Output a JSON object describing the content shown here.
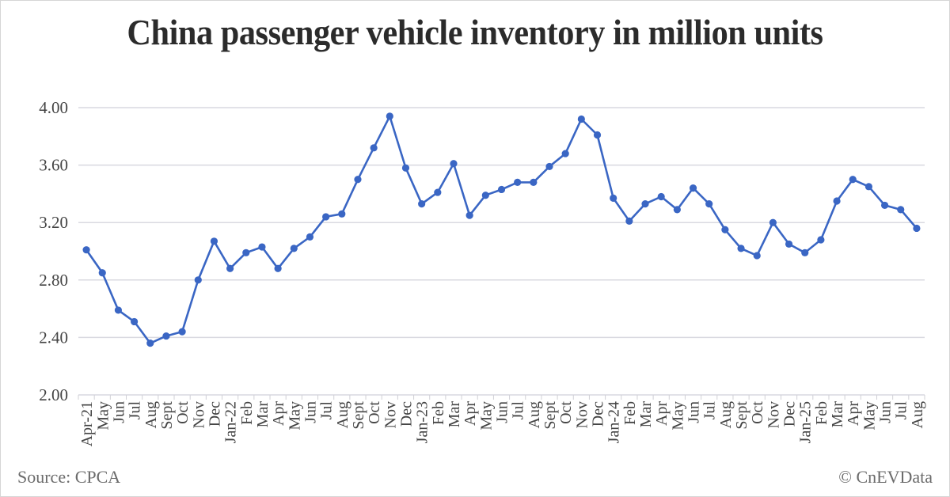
{
  "chart_data": {
    "type": "line",
    "title": "China passenger vehicle inventory in million units",
    "xlabel": "",
    "ylabel": "",
    "ylim": [
      2.0,
      4.0
    ],
    "yticks": [
      "2.00",
      "2.40",
      "2.80",
      "3.20",
      "3.60",
      "4.00"
    ],
    "ytick_values": [
      2.0,
      2.4,
      2.8,
      3.2,
      3.6,
      4.0
    ],
    "grid": true,
    "legend": "none",
    "categories": [
      "Apr-21",
      "May",
      "Jun",
      "Jul",
      "Aug",
      "Sept",
      "Oct",
      "Nov",
      "Dec",
      "Jan-22",
      "Feb",
      "Mar",
      "Apr",
      "May",
      "Jun",
      "Jul",
      "Aug",
      "Sept",
      "Oct",
      "Nov",
      "Dec",
      "Jan-23",
      "Feb",
      "Mar",
      "Apr",
      "May",
      "Jun",
      "Jul",
      "Aug",
      "Sept",
      "Oct",
      "Nov",
      "Dec",
      "Jan-24",
      "Feb",
      "Mar",
      "Apr",
      "May",
      "Jun",
      "Jul",
      "Aug",
      "Sept",
      "Oct",
      "Nov",
      "Dec",
      "Jan-25",
      "Feb",
      "Mar",
      "Apr",
      "May",
      "Jun",
      "Jul",
      "Aug"
    ],
    "series": [
      {
        "name": "Passenger vehicle inventory (million units)",
        "color": "#3a66c4",
        "values": [
          3.01,
          2.85,
          2.59,
          2.51,
          2.36,
          2.41,
          2.44,
          2.8,
          3.07,
          2.88,
          2.99,
          3.03,
          2.88,
          3.02,
          3.1,
          3.24,
          3.26,
          3.5,
          3.72,
          3.94,
          3.58,
          3.33,
          3.41,
          3.61,
          3.25,
          3.39,
          3.43,
          3.48,
          3.48,
          3.59,
          3.68,
          3.92,
          3.81,
          3.37,
          3.21,
          3.33,
          3.38,
          3.29,
          3.44,
          3.33,
          3.15,
          3.02,
          2.97,
          3.2,
          3.05,
          2.99,
          3.08,
          3.35,
          3.5,
          3.45,
          3.32,
          3.29,
          3.16
        ]
      }
    ]
  },
  "footer": {
    "source": "Source: CPCA",
    "credit": "© CnEVData"
  },
  "colors": {
    "line": "#3a66c4",
    "grid": "#d9d9e0",
    "text": "#444444"
  }
}
